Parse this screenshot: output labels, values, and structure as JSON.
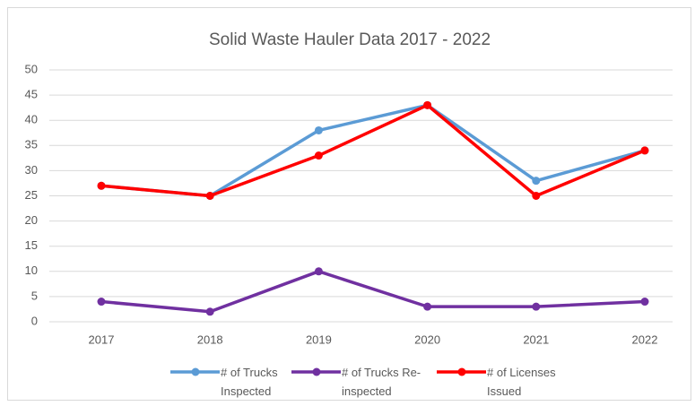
{
  "chart_data": {
    "type": "line",
    "title": "Solid Waste Hauler Data 2017 - 2022",
    "categories": [
      "2017",
      "2018",
      "2019",
      "2020",
      "2021",
      "2022"
    ],
    "series": [
      {
        "name": "# of Trucks Inspected",
        "color": "#5b9bd5",
        "values": [
          27,
          25,
          38,
          43,
          28,
          34
        ]
      },
      {
        "name": "# of Trucks Re-inspected",
        "color": "#7030a0",
        "values": [
          4,
          2,
          10,
          3,
          3,
          4
        ]
      },
      {
        "name": "# of Licenses Issued",
        "color": "#ff0000",
        "values": [
          27,
          25,
          33,
          43,
          25,
          34
        ]
      }
    ],
    "ylim": [
      0,
      50
    ],
    "yticks": [
      0,
      5,
      10,
      15,
      20,
      25,
      30,
      35,
      40,
      45,
      50
    ],
    "grid": true,
    "legend": "bottom"
  }
}
